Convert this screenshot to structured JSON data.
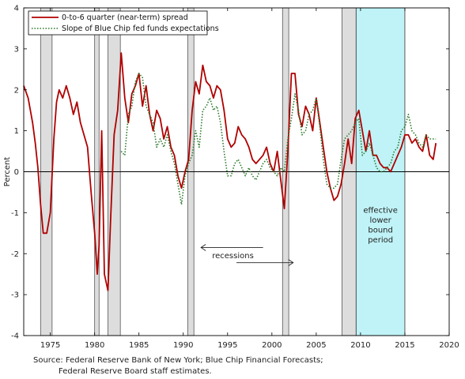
{
  "chart_data": {
    "type": "line",
    "title": "",
    "xlabel": "",
    "ylabel": "Percent",
    "xlim": [
      1972.0,
      2020.0
    ],
    "ylim": [
      -4,
      4
    ],
    "x_ticks": [
      1975,
      1980,
      1985,
      1990,
      1995,
      2000,
      2005,
      2010,
      2015,
      2020
    ],
    "y_ticks": [
      -4,
      -3,
      -2,
      -1,
      0,
      1,
      2,
      3,
      4
    ],
    "grid": false,
    "legend_position": "top-left",
    "recessions": [
      [
        1973.9,
        1975.2
      ],
      [
        1980.0,
        1980.5
      ],
      [
        1981.5,
        1982.9
      ],
      [
        1990.5,
        1991.2
      ],
      [
        2001.2,
        2001.9
      ],
      [
        2007.9,
        2009.5
      ]
    ],
    "elb_period": [
      2009.5,
      2015.0
    ],
    "series": [
      {
        "name": "0-to-6 quarter (near-term) spread",
        "color": "#b00000",
        "style": "solid",
        "x": [
          1972.0,
          1972.5,
          1973.0,
          1973.3,
          1973.6,
          1973.9,
          1974.2,
          1974.6,
          1975.0,
          1975.4,
          1975.7,
          1976.0,
          1976.4,
          1976.8,
          1977.2,
          1977.6,
          1978.0,
          1978.4,
          1978.8,
          1979.2,
          1979.6,
          1980.0,
          1980.3,
          1980.5,
          1980.8,
          1981.1,
          1981.5,
          1981.8,
          1982.2,
          1982.6,
          1983.0,
          1983.4,
          1983.8,
          1984.2,
          1984.6,
          1985.0,
          1985.4,
          1985.8,
          1986.2,
          1986.6,
          1987.0,
          1987.4,
          1987.8,
          1988.2,
          1988.6,
          1989.0,
          1989.4,
          1989.8,
          1990.2,
          1990.6,
          1991.0,
          1991.4,
          1991.8,
          1992.2,
          1992.6,
          1993.0,
          1993.4,
          1993.8,
          1994.2,
          1994.6,
          1995.0,
          1995.4,
          1995.8,
          1996.2,
          1996.6,
          1997.0,
          1997.4,
          1997.8,
          1998.2,
          1998.6,
          1999.0,
          1999.4,
          1999.8,
          2000.2,
          2000.6,
          2001.0,
          2001.4,
          2001.8,
          2002.2,
          2002.6,
          2003.0,
          2003.4,
          2003.8,
          2004.2,
          2004.6,
          2005.0,
          2005.4,
          2005.8,
          2006.2,
          2006.6,
          2007.0,
          2007.4,
          2007.8,
          2008.2,
          2008.6,
          2009.0,
          2009.4,
          2009.8,
          2010.2,
          2010.6,
          2011.0,
          2011.4,
          2011.8,
          2012.2,
          2012.6,
          2013.0,
          2013.4,
          2013.8,
          2014.2,
          2014.6,
          2015.0,
          2015.4,
          2015.8,
          2016.2,
          2016.6,
          2017.0,
          2017.4,
          2017.8,
          2018.2,
          2018.5
        ],
        "y": [
          2.1,
          1.8,
          1.2,
          0.7,
          0.1,
          -0.8,
          -1.5,
          -1.5,
          -1.0,
          0.8,
          1.7,
          2.0,
          1.8,
          2.1,
          1.8,
          1.4,
          1.7,
          1.2,
          0.9,
          0.6,
          -0.5,
          -1.5,
          -2.5,
          -1.8,
          1.0,
          -2.5,
          -2.9,
          -1.2,
          0.9,
          1.5,
          2.9,
          1.8,
          1.2,
          1.9,
          2.1,
          2.4,
          1.6,
          2.1,
          1.4,
          1.0,
          1.5,
          1.3,
          0.8,
          1.1,
          0.6,
          0.4,
          -0.1,
          -0.4,
          0.0,
          0.3,
          1.5,
          2.2,
          1.9,
          2.6,
          2.2,
          2.1,
          1.8,
          2.1,
          2.0,
          1.5,
          0.8,
          0.6,
          0.7,
          1.1,
          0.9,
          0.8,
          0.6,
          0.3,
          0.2,
          0.3,
          0.4,
          0.6,
          0.2,
          0.0,
          0.5,
          -0.2,
          -0.9,
          0.5,
          2.4,
          2.4,
          1.4,
          1.1,
          1.6,
          1.4,
          1.0,
          1.8,
          1.2,
          0.6,
          0.0,
          -0.4,
          -0.7,
          -0.6,
          -0.3,
          0.2,
          0.8,
          0.2,
          1.3,
          1.5,
          1.0,
          0.5,
          1.0,
          0.4,
          0.4,
          0.2,
          0.1,
          0.1,
          0.0,
          0.2,
          0.4,
          0.6,
          0.9,
          0.9,
          0.7,
          0.8,
          0.6,
          0.5,
          0.9,
          0.4,
          0.3,
          0.7
        ],
        "comment": ""
      },
      {
        "name": "Slope of Blue Chip fed funds expectations",
        "color": "#2a7a2a",
        "style": "dotted",
        "x": [
          1983.0,
          1983.4,
          1983.8,
          1984.2,
          1984.6,
          1985.0,
          1985.4,
          1985.8,
          1986.2,
          1986.6,
          1987.0,
          1987.4,
          1987.8,
          1988.2,
          1988.6,
          1989.0,
          1989.4,
          1989.8,
          1990.2,
          1990.6,
          1991.0,
          1991.4,
          1991.8,
          1992.2,
          1992.6,
          1993.0,
          1993.4,
          1993.8,
          1994.2,
          1994.6,
          1995.0,
          1995.4,
          1995.8,
          1996.2,
          1996.6,
          1997.0,
          1997.4,
          1997.8,
          1998.2,
          1998.6,
          1999.0,
          1999.4,
          1999.8,
          2000.2,
          2000.6,
          2001.0,
          2001.4,
          2001.8,
          2002.2,
          2002.6,
          2003.0,
          2003.4,
          2003.8,
          2004.2,
          2004.6,
          2005.0,
          2005.4,
          2005.8,
          2006.2,
          2006.6,
          2007.0,
          2007.4,
          2007.8,
          2008.2,
          2008.6,
          2009.0,
          2009.4,
          2009.8,
          2010.2,
          2010.6,
          2011.0,
          2011.4,
          2011.8,
          2012.2,
          2012.6,
          2013.0,
          2013.4,
          2013.8,
          2014.2,
          2014.6,
          2015.0,
          2015.4,
          2015.8,
          2016.2,
          2016.6,
          2017.0,
          2017.4,
          2017.8,
          2018.2,
          2018.5
        ],
        "y": [
          0.5,
          0.4,
          1.4,
          1.6,
          2.2,
          2.4,
          2.3,
          1.6,
          1.4,
          1.2,
          0.6,
          0.8,
          0.6,
          0.9,
          0.5,
          0.2,
          -0.3,
          -0.8,
          -0.1,
          0.2,
          0.4,
          1.0,
          0.6,
          1.5,
          1.6,
          1.8,
          1.5,
          1.6,
          1.2,
          0.5,
          -0.1,
          -0.1,
          0.2,
          0.3,
          0.1,
          -0.1,
          0.1,
          -0.1,
          -0.2,
          0.0,
          0.2,
          0.3,
          0.1,
          0.0,
          -0.1,
          0.1,
          0.0,
          0.8,
          1.3,
          1.9,
          1.5,
          0.9,
          1.0,
          1.4,
          1.5,
          1.8,
          1.1,
          0.3,
          -0.3,
          -0.4,
          -0.4,
          -0.3,
          0.3,
          0.8,
          0.9,
          1.0,
          1.2,
          1.3,
          0.4,
          0.5,
          0.7,
          0.4,
          0.1,
          0.0,
          0.0,
          0.1,
          0.2,
          0.5,
          0.6,
          1.0,
          1.1,
          1.4,
          1.0,
          0.9,
          0.7,
          0.6,
          0.9,
          0.8,
          0.8,
          0.8
        ]
      }
    ],
    "annotations": {
      "recessions_label": "recessions",
      "elb_label": [
        "effective",
        "lower",
        "bound",
        "period"
      ]
    }
  },
  "source": {
    "line1": "Source: Federal Reserve Bank of New York; Blue Chip Financial Forecasts;",
    "line2": "Federal Reserve Board staff estimates."
  }
}
